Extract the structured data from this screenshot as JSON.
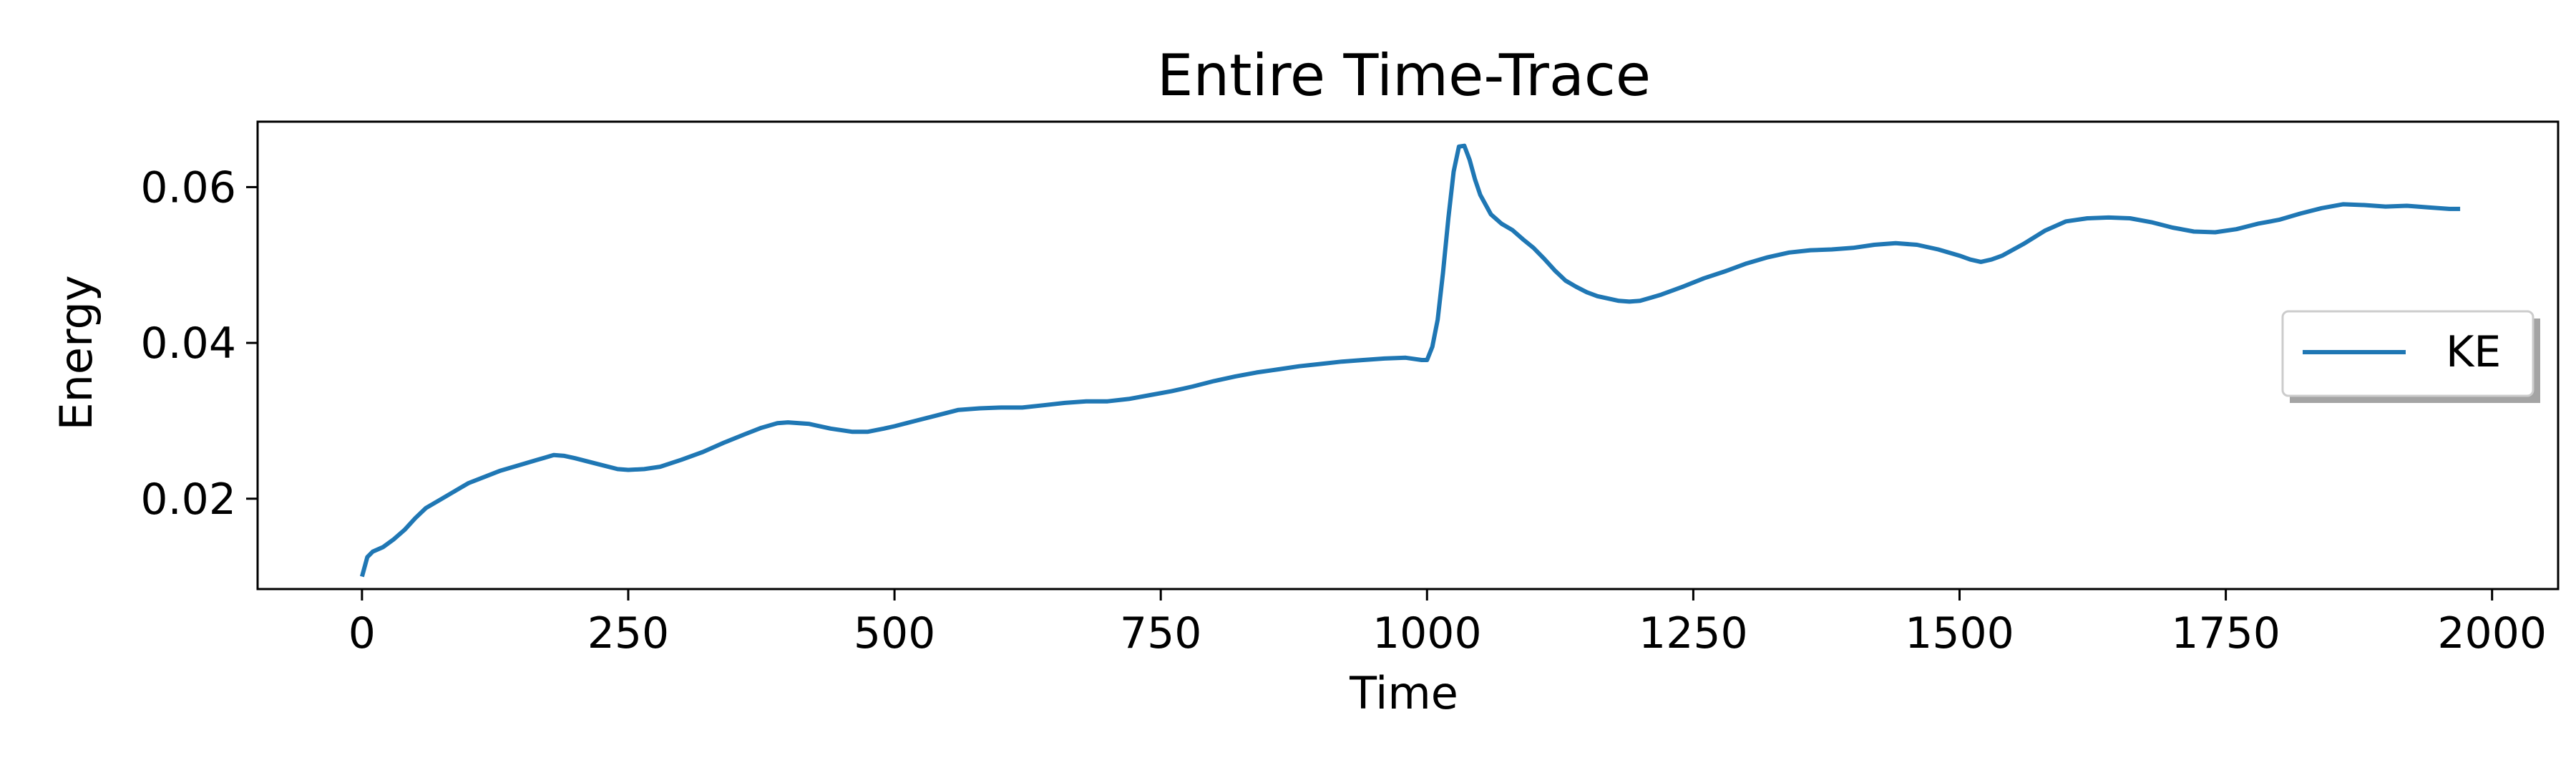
{
  "chart_data": {
    "type": "line",
    "title": "Entire Time-Trace",
    "xlabel": "Time",
    "ylabel": "Energy",
    "xlim": [
      -98,
      2062
    ],
    "ylim": [
      0.0084,
      0.0684
    ],
    "xticks": [
      0,
      250,
      500,
      750,
      1000,
      1250,
      1500,
      1750,
      2000
    ],
    "xtick_labels": [
      "0",
      "250",
      "500",
      "750",
      "1000",
      "1250",
      "1500",
      "1750",
      "2000"
    ],
    "yticks": [
      0.02,
      0.04,
      0.06
    ],
    "ytick_labels": [
      "0.02",
      "0.04",
      "0.06"
    ],
    "grid": false,
    "legend_position": "center-right",
    "series": [
      {
        "name": "KE",
        "color": "#1f77b4",
        "x": [
          0,
          5,
          10,
          20,
          30,
          40,
          50,
          60,
          75,
          90,
          100,
          115,
          130,
          150,
          165,
          180,
          190,
          200,
          220,
          240,
          250,
          265,
          280,
          300,
          320,
          340,
          360,
          375,
          390,
          400,
          420,
          440,
          460,
          475,
          490,
          500,
          520,
          540,
          560,
          580,
          600,
          620,
          640,
          660,
          680,
          700,
          720,
          740,
          760,
          780,
          800,
          820,
          840,
          860,
          880,
          900,
          920,
          940,
          960,
          980,
          995,
          1000,
          1005,
          1010,
          1015,
          1020,
          1025,
          1030,
          1035,
          1040,
          1045,
          1050,
          1060,
          1070,
          1080,
          1090,
          1100,
          1110,
          1120,
          1130,
          1140,
          1150,
          1160,
          1170,
          1180,
          1190,
          1200,
          1210,
          1220,
          1240,
          1260,
          1280,
          1300,
          1320,
          1340,
          1360,
          1380,
          1400,
          1420,
          1440,
          1460,
          1480,
          1500,
          1510,
          1520,
          1530,
          1540,
          1560,
          1580,
          1600,
          1620,
          1640,
          1660,
          1680,
          1700,
          1720,
          1740,
          1760,
          1780,
          1800,
          1820,
          1840,
          1860,
          1880,
          1900,
          1920,
          1940,
          1960,
          1970
        ],
        "y": [
          0.01,
          0.0125,
          0.0132,
          0.0138,
          0.0148,
          0.016,
          0.0175,
          0.0188,
          0.02,
          0.0212,
          0.022,
          0.0228,
          0.0236,
          0.0244,
          0.025,
          0.0256,
          0.0255,
          0.0252,
          0.0245,
          0.0238,
          0.0237,
          0.0238,
          0.0241,
          0.025,
          0.026,
          0.0272,
          0.0283,
          0.0291,
          0.0297,
          0.0298,
          0.0296,
          0.029,
          0.0286,
          0.0286,
          0.029,
          0.0293,
          0.03,
          0.0307,
          0.0314,
          0.0316,
          0.0317,
          0.0317,
          0.032,
          0.0323,
          0.0325,
          0.0325,
          0.0328,
          0.0333,
          0.0338,
          0.0344,
          0.0351,
          0.0357,
          0.0362,
          0.0366,
          0.037,
          0.0373,
          0.0376,
          0.0378,
          0.038,
          0.0381,
          0.0378,
          0.0378,
          0.0395,
          0.043,
          0.049,
          0.056,
          0.062,
          0.0652,
          0.0653,
          0.0635,
          0.061,
          0.059,
          0.0565,
          0.0553,
          0.0545,
          0.0533,
          0.0522,
          0.0508,
          0.0493,
          0.048,
          0.0472,
          0.0465,
          0.046,
          0.0457,
          0.0454,
          0.0453,
          0.0454,
          0.0458,
          0.0462,
          0.0472,
          0.0483,
          0.0492,
          0.0502,
          0.051,
          0.0516,
          0.0519,
          0.052,
          0.0522,
          0.0526,
          0.0528,
          0.0526,
          0.052,
          0.0512,
          0.0507,
          0.0504,
          0.0507,
          0.0512,
          0.0527,
          0.0544,
          0.0556,
          0.056,
          0.0561,
          0.056,
          0.0555,
          0.0548,
          0.0543,
          0.0542,
          0.0546,
          0.0553,
          0.0558,
          0.0566,
          0.0573,
          0.0578,
          0.0577,
          0.0575,
          0.0576,
          0.0574,
          0.0572,
          0.0572
        ]
      }
    ]
  }
}
